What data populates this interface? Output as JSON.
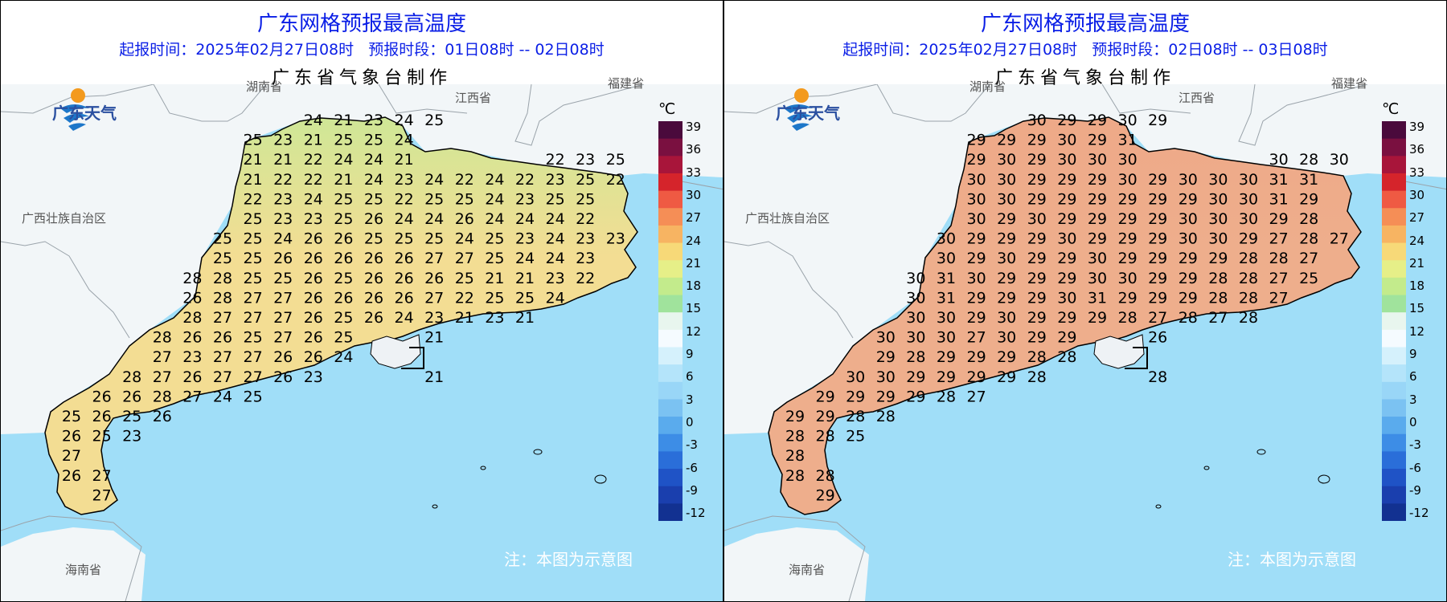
{
  "panels": [
    {
      "title": "广东网格预报最高温度",
      "subtitle": "起报时间：2025年02月27日08时   预报时段：01日08时 -- 02日08时",
      "maker": "广东省气象台制作",
      "logo_text": "广东天气",
      "regions": [
        "湖南省",
        "江西省",
        "福建省",
        "广西壮族自治区",
        "海南省"
      ],
      "note": "注：本图为示意图",
      "colorbar_unit": "℃",
      "colorbar_ticks": [
        "39",
        "36",
        "33",
        "30",
        "27",
        "24",
        "21",
        "18",
        "15",
        "12",
        "9",
        "6",
        "3",
        "0",
        "-3",
        "-6",
        "-9",
        "-12"
      ],
      "grid_values": [
        [
          "",
          "",
          "",
          "",
          "",
          "",
          "",
          "",
          "24",
          "21",
          "23",
          "24",
          "25",
          "",
          "",
          "",
          "",
          "",
          "",
          ""
        ],
        [
          "",
          "",
          "",
          "",
          "",
          "",
          "25",
          "23",
          "21",
          "25",
          "25",
          "24",
          "",
          "",
          "",
          "",
          "",
          "",
          "",
          ""
        ],
        [
          "",
          "",
          "",
          "",
          "",
          "",
          "21",
          "21",
          "22",
          "24",
          "24",
          "21",
          "",
          "",
          "",
          "",
          "22",
          "23",
          "25",
          ""
        ],
        [
          "",
          "",
          "",
          "",
          "",
          "",
          "21",
          "22",
          "22",
          "21",
          "24",
          "23",
          "24",
          "22",
          "24",
          "22",
          "23",
          "25",
          "22",
          ""
        ],
        [
          "",
          "",
          "",
          "",
          "",
          "",
          "22",
          "23",
          "24",
          "25",
          "25",
          "22",
          "25",
          "25",
          "24",
          "23",
          "25",
          "25",
          "",
          ""
        ],
        [
          "",
          "",
          "",
          "",
          "",
          "",
          "25",
          "23",
          "23",
          "25",
          "26",
          "24",
          "24",
          "26",
          "24",
          "24",
          "24",
          "22",
          "",
          ""
        ],
        [
          "",
          "",
          "",
          "",
          "",
          "25",
          "25",
          "24",
          "26",
          "26",
          "25",
          "25",
          "25",
          "24",
          "25",
          "23",
          "24",
          "23",
          "23",
          ""
        ],
        [
          "",
          "",
          "",
          "",
          "",
          "25",
          "25",
          "26",
          "26",
          "26",
          "26",
          "26",
          "27",
          "27",
          "25",
          "24",
          "24",
          "23",
          "",
          ""
        ],
        [
          "",
          "",
          "",
          "",
          "28",
          "28",
          "25",
          "25",
          "26",
          "25",
          "26",
          "26",
          "26",
          "25",
          "21",
          "21",
          "23",
          "22",
          "",
          ""
        ],
        [
          "",
          "",
          "",
          "",
          "26",
          "28",
          "27",
          "27",
          "26",
          "26",
          "26",
          "26",
          "27",
          "22",
          "25",
          "25",
          "24",
          "",
          "",
          ""
        ],
        [
          "",
          "",
          "",
          "",
          "28",
          "27",
          "27",
          "27",
          "26",
          "25",
          "26",
          "24",
          "23",
          "21",
          "23",
          "21",
          "",
          "",
          "",
          ""
        ],
        [
          "",
          "",
          "",
          "28",
          "26",
          "26",
          "25",
          "27",
          "26",
          "25",
          "",
          "",
          "21",
          "",
          "",
          "",
          "",
          "",
          "",
          ""
        ],
        [
          "",
          "",
          "",
          "27",
          "23",
          "27",
          "27",
          "26",
          "26",
          "24",
          "",
          "",
          "",
          "",
          "",
          "",
          "",
          "",
          "",
          ""
        ],
        [
          "",
          "",
          "28",
          "27",
          "26",
          "27",
          "27",
          "26",
          "23",
          "",
          "",
          "",
          "21",
          "",
          "",
          "",
          "",
          "",
          "",
          ""
        ],
        [
          "",
          "26",
          "26",
          "28",
          "27",
          "24",
          "25",
          "",
          "",
          "",
          "",
          "",
          "",
          "",
          "",
          "",
          "",
          "",
          "",
          ""
        ],
        [
          "25",
          "26",
          "25",
          "26",
          "",
          "",
          "",
          "",
          "",
          "",
          "",
          "",
          "",
          "",
          "",
          "",
          "",
          "",
          "",
          ""
        ],
        [
          "26",
          "25",
          "23",
          "",
          "",
          "",
          "",
          "",
          "",
          "",
          "",
          "",
          "",
          "",
          "",
          "",
          "",
          "",
          "",
          ""
        ],
        [
          "27",
          "",
          "",
          "",
          "",
          "",
          "",
          "",
          "",
          "",
          "",
          "",
          "",
          "",
          "",
          "",
          "",
          "",
          "",
          ""
        ],
        [
          "26",
          "27",
          "",
          "",
          "",
          "",
          "",
          "",
          "",
          "",
          "",
          "",
          "",
          "",
          "",
          "",
          "",
          "",
          "",
          ""
        ],
        [
          "",
          "27",
          "",
          "",
          "",
          "",
          "",
          "",
          "",
          "",
          "",
          "",
          "",
          "",
          "",
          "",
          "",
          "",
          "",
          ""
        ]
      ],
      "land_color": "#f3dd93",
      "north_color": "#cfe796"
    },
    {
      "title": "广东网格预报最高温度",
      "subtitle": "起报时间：2025年02月27日08时   预报时段：02日08时 -- 03日08时",
      "maker": "广东省气象台制作",
      "logo_text": "广东天气",
      "regions": [
        "湖南省",
        "江西省",
        "福建省",
        "广西壮族自治区",
        "海南省"
      ],
      "note": "注：本图为示意图",
      "colorbar_unit": "℃",
      "colorbar_ticks": [
        "39",
        "36",
        "33",
        "30",
        "27",
        "24",
        "21",
        "18",
        "15",
        "12",
        "9",
        "6",
        "3",
        "0",
        "-3",
        "-6",
        "-9",
        "-12"
      ],
      "grid_values": [
        [
          "",
          "",
          "",
          "",
          "",
          "",
          "",
          "",
          "30",
          "29",
          "29",
          "30",
          "29",
          "",
          "",
          "",
          "",
          "",
          "",
          ""
        ],
        [
          "",
          "",
          "",
          "",
          "",
          "",
          "29",
          "29",
          "29",
          "30",
          "29",
          "31",
          "",
          "",
          "",
          "",
          "",
          "",
          "",
          ""
        ],
        [
          "",
          "",
          "",
          "",
          "",
          "",
          "29",
          "30",
          "29",
          "30",
          "30",
          "30",
          "",
          "",
          "",
          "",
          "30",
          "28",
          "30",
          ""
        ],
        [
          "",
          "",
          "",
          "",
          "",
          "",
          "30",
          "30",
          "29",
          "29",
          "29",
          "30",
          "29",
          "30",
          "30",
          "30",
          "31",
          "31",
          "",
          ""
        ],
        [
          "",
          "",
          "",
          "",
          "",
          "",
          "30",
          "30",
          "29",
          "29",
          "29",
          "29",
          "29",
          "29",
          "30",
          "30",
          "31",
          "29",
          "",
          ""
        ],
        [
          "",
          "",
          "",
          "",
          "",
          "",
          "30",
          "29",
          "30",
          "29",
          "29",
          "29",
          "29",
          "30",
          "30",
          "30",
          "29",
          "28",
          "",
          ""
        ],
        [
          "",
          "",
          "",
          "",
          "",
          "30",
          "29",
          "29",
          "29",
          "30",
          "29",
          "29",
          "29",
          "30",
          "30",
          "29",
          "27",
          "28",
          "27",
          ""
        ],
        [
          "",
          "",
          "",
          "",
          "",
          "30",
          "29",
          "30",
          "29",
          "29",
          "30",
          "29",
          "29",
          "29",
          "29",
          "28",
          "28",
          "27",
          "",
          ""
        ],
        [
          "",
          "",
          "",
          "",
          "30",
          "31",
          "30",
          "29",
          "29",
          "29",
          "30",
          "30",
          "29",
          "29",
          "28",
          "28",
          "27",
          "25",
          "",
          ""
        ],
        [
          "",
          "",
          "",
          "",
          "30",
          "31",
          "29",
          "29",
          "29",
          "30",
          "31",
          "29",
          "29",
          "29",
          "28",
          "28",
          "27",
          "",
          "",
          ""
        ],
        [
          "",
          "",
          "",
          "",
          "30",
          "30",
          "29",
          "30",
          "29",
          "29",
          "29",
          "28",
          "27",
          "28",
          "27",
          "28",
          "",
          "",
          "",
          ""
        ],
        [
          "",
          "",
          "",
          "30",
          "30",
          "30",
          "27",
          "30",
          "29",
          "29",
          "",
          "",
          "26",
          "",
          "",
          "",
          "",
          "",
          "",
          ""
        ],
        [
          "",
          "",
          "",
          "29",
          "28",
          "29",
          "29",
          "29",
          "28",
          "28",
          "",
          "",
          "",
          "",
          "",
          "",
          "",
          "",
          "",
          ""
        ],
        [
          "",
          "",
          "30",
          "30",
          "29",
          "29",
          "29",
          "29",
          "28",
          "",
          "",
          "",
          "28",
          "",
          "",
          "",
          "",
          "",
          "",
          ""
        ],
        [
          "",
          "29",
          "29",
          "29",
          "29",
          "28",
          "27",
          "",
          "",
          "",
          "",
          "",
          "",
          "",
          "",
          "",
          "",
          "",
          "",
          ""
        ],
        [
          "29",
          "29",
          "28",
          "28",
          "",
          "",
          "",
          "",
          "",
          "",
          "",
          "",
          "",
          "",
          "",
          "",
          "",
          "",
          "",
          ""
        ],
        [
          "28",
          "28",
          "25",
          "",
          "",
          "",
          "",
          "",
          "",
          "",
          "",
          "",
          "",
          "",
          "",
          "",
          "",
          "",
          "",
          ""
        ],
        [
          "28",
          "",
          "",
          "",
          "",
          "",
          "",
          "",
          "",
          "",
          "",
          "",
          "",
          "",
          "",
          "",
          "",
          "",
          "",
          ""
        ],
        [
          "28",
          "28",
          "",
          "",
          "",
          "",
          "",
          "",
          "",
          "",
          "",
          "",
          "",
          "",
          "",
          "",
          "",
          "",
          "",
          ""
        ],
        [
          "",
          "29",
          "",
          "",
          "",
          "",
          "",
          "",
          "",
          "",
          "",
          "",
          "",
          "",
          "",
          "",
          "",
          "",
          "",
          ""
        ]
      ],
      "land_color": "#eeae8c",
      "north_color": "#eea988"
    }
  ],
  "colorbar_colors": [
    "#4a0a3c",
    "#7a1040",
    "#a8153a",
    "#d5242b",
    "#ef5a43",
    "#f58e56",
    "#f7b462",
    "#f7d978",
    "#e6ef88",
    "#c3eb8c",
    "#a0e39c",
    "#e8f6ee",
    "#f5fbff",
    "#d5f1fc",
    "#b4e4fa",
    "#99d6f7",
    "#7bc2f2",
    "#5aabed",
    "#3d8de6",
    "#2a6ed9",
    "#1f53c6",
    "#1a3fae",
    "#123191"
  ],
  "colors": {
    "title_blue": "#0a1ee6",
    "sea": "#a0def8",
    "neighbor_land": "#f2f6f8"
  }
}
